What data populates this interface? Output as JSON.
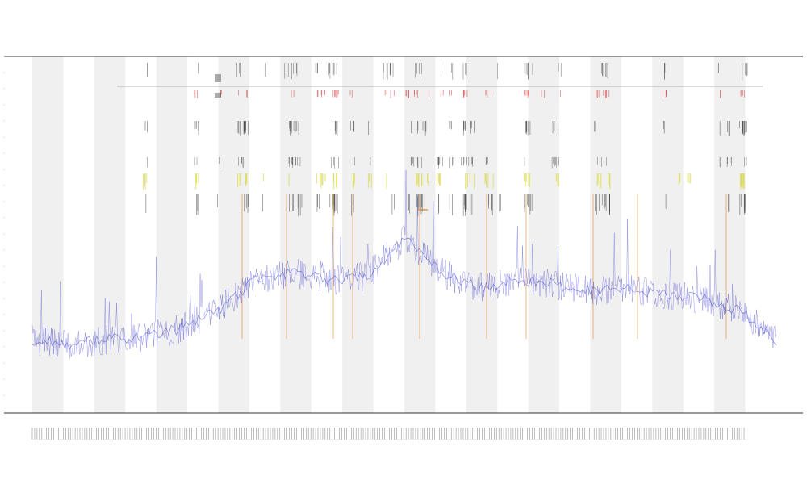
{
  "chart_data": {
    "type": "line",
    "title": "",
    "subtitle1": "",
    "subtitle2": "",
    "xlabel": "",
    "ylabel": "",
    "ylim": [
      0,
      1
    ],
    "grid": false,
    "legend": {
      "placement": "left",
      "entries": []
    },
    "band_count": 12,
    "x_tick_count": 300,
    "series": [
      {
        "color": "#4040d0",
        "kind": "signal",
        "x": [
          0,
          0.05,
          0.1,
          0.15,
          0.2,
          0.25,
          0.3,
          0.35,
          0.4,
          0.45,
          0.5,
          0.55,
          0.6,
          0.65,
          0.7,
          0.75,
          0.8,
          0.85,
          0.9,
          0.95,
          1.0
        ],
        "values": [
          0.1,
          0.09,
          0.1,
          0.11,
          0.13,
          0.18,
          0.26,
          0.28,
          0.26,
          0.27,
          0.37,
          0.28,
          0.24,
          0.26,
          0.25,
          0.23,
          0.24,
          0.22,
          0.21,
          0.18,
          0.1
        ]
      }
    ],
    "colors": {
      "band": "#f0f0f0",
      "signal": "#4040d0",
      "annotation_dark": "#333333",
      "annotation_red": "#d04040",
      "annotation_orange": "#e08020",
      "annotation_yellow": "#dddd60",
      "axis": "#333333"
    }
  }
}
